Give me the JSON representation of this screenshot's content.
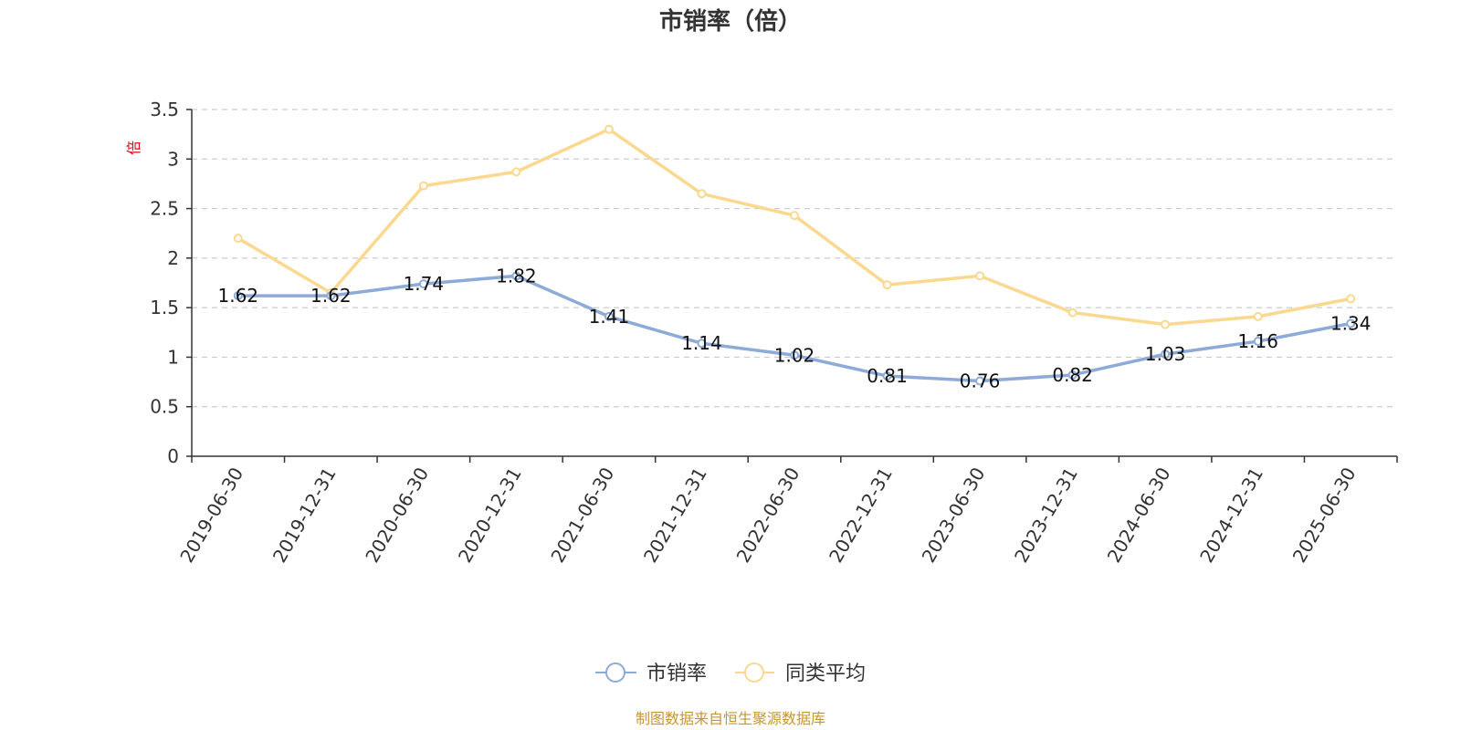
{
  "chart_data": {
    "type": "line",
    "title": "市销率（倍）",
    "ylabel": "倍",
    "xlabel": "",
    "x": [
      "2019-06-30",
      "2019-12-31",
      "2020-06-30",
      "2020-12-31",
      "2021-06-30",
      "2021-12-31",
      "2022-06-30",
      "2022-12-31",
      "2023-06-30",
      "2023-12-31",
      "2024-06-30",
      "2024-12-31",
      "2025-06-30"
    ],
    "ylim": [
      0,
      3.5
    ],
    "yticks": [
      "0",
      "0.5",
      "1",
      "1.5",
      "2",
      "2.5",
      "3",
      "3.5"
    ],
    "grid": true,
    "legend_position": "bottom-center",
    "series": [
      {
        "name": "市销率",
        "color": "#8eaad8",
        "values": [
          1.62,
          1.62,
          1.74,
          1.82,
          1.41,
          1.14,
          1.02,
          0.81,
          0.76,
          0.82,
          1.03,
          1.16,
          1.34
        ],
        "labels": [
          "1.62",
          "1.62",
          "1.74",
          "1.82",
          "1.41",
          "1.14",
          "1.02",
          "0.81",
          "0.76",
          "0.82",
          "1.03",
          "1.16",
          "1.34"
        ]
      },
      {
        "name": "同类平均",
        "color": "#fbd88f",
        "values": [
          2.2,
          1.65,
          2.73,
          2.87,
          3.3,
          2.65,
          2.43,
          1.73,
          1.82,
          1.45,
          1.33,
          1.41,
          1.59
        ]
      }
    ],
    "source": "制图数据来自恒生聚源数据库"
  }
}
